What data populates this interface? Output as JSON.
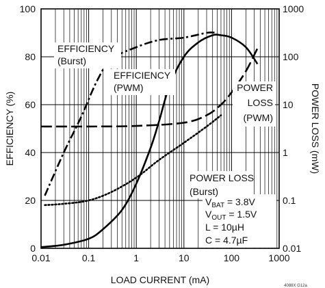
{
  "chart_data": {
    "type": "line",
    "title": "",
    "xlabel": "LOAD CURRENT (mA)",
    "ylabel_left": "EFFICIENCY (%)",
    "ylabel_right": "POWER LOSS (mW)",
    "x_scale": "log",
    "xlim": [
      0.01,
      1000
    ],
    "ylim_left": [
      0,
      100
    ],
    "ylim_right": [
      0.01,
      1000
    ],
    "y_right_scale": "log",
    "x_ticks": [
      "0.01",
      "0.1",
      "1",
      "10",
      "100",
      "1000"
    ],
    "y_left_ticks": [
      "0",
      "20",
      "40",
      "60",
      "80",
      "100"
    ],
    "y_right_ticks": [
      "0.01",
      "0.1",
      "1",
      "10",
      "100",
      "1000"
    ],
    "grid": true,
    "series": [
      {
        "name": "EFFICIENCY (Burst)",
        "axis": "left",
        "style": "dash-dot",
        "points": [
          [
            0.012,
            22
          ],
          [
            0.03,
            40
          ],
          [
            0.07,
            55
          ],
          [
            0.15,
            70
          ],
          [
            0.3,
            79
          ],
          [
            1,
            84
          ],
          [
            3,
            87
          ],
          [
            10,
            88
          ],
          [
            30,
            90
          ],
          [
            50,
            90
          ]
        ]
      },
      {
        "name": "EFFICIENCY (PWM)",
        "axis": "left",
        "style": "solid",
        "points": [
          [
            0.01,
            0.5
          ],
          [
            0.03,
            1.5
          ],
          [
            0.1,
            4
          ],
          [
            0.2,
            8
          ],
          [
            0.5,
            16
          ],
          [
            1,
            27
          ],
          [
            2,
            42
          ],
          [
            3,
            53
          ],
          [
            5,
            68
          ],
          [
            10,
            80
          ],
          [
            20,
            86
          ],
          [
            40,
            89
          ],
          [
            60,
            89
          ],
          [
            100,
            88
          ],
          [
            200,
            84
          ],
          [
            350,
            77
          ]
        ]
      },
      {
        "name": "POWER LOSS (PWM)",
        "axis": "right",
        "style": "dashed",
        "points": [
          [
            0.01,
            3.5
          ],
          [
            0.1,
            3.5
          ],
          [
            1,
            3.6
          ],
          [
            10,
            4.2
          ],
          [
            30,
            6
          ],
          [
            60,
            10
          ],
          [
            100,
            18
          ],
          [
            200,
            50
          ],
          [
            350,
            150
          ]
        ]
      },
      {
        "name": "POWER LOSS (Burst)",
        "axis": "right",
        "style": "dotted",
        "points": [
          [
            0.012,
            0.08
          ],
          [
            0.03,
            0.085
          ],
          [
            0.1,
            0.1
          ],
          [
            0.3,
            0.15
          ],
          [
            1,
            0.3
          ],
          [
            3,
            0.7
          ],
          [
            10,
            1.6
          ],
          [
            30,
            3.5
          ],
          [
            60,
            6
          ]
        ]
      }
    ],
    "annotations": {
      "eff_burst": [
        "EFFICIENCY",
        "(Burst)"
      ],
      "eff_pwm": [
        "EFFICIENCY",
        "(PWM)"
      ],
      "loss_pwm": [
        "POWER",
        "LOSS",
        "(PWM)"
      ],
      "loss_burst": [
        "POWER LOSS",
        "(Burst)"
      ],
      "conditions": [
        {
          "pre": "V",
          "sub": "BAT",
          "post": " = 3.8V"
        },
        {
          "pre": "V",
          "sub": "OUT",
          "post": " = 1.5V"
        },
        {
          "pre": "L = 10µH",
          "sub": "",
          "post": ""
        },
        {
          "pre": "C = 4.7µF",
          "sub": "",
          "post": ""
        }
      ],
      "figure_id": "4088X G12a"
    }
  }
}
